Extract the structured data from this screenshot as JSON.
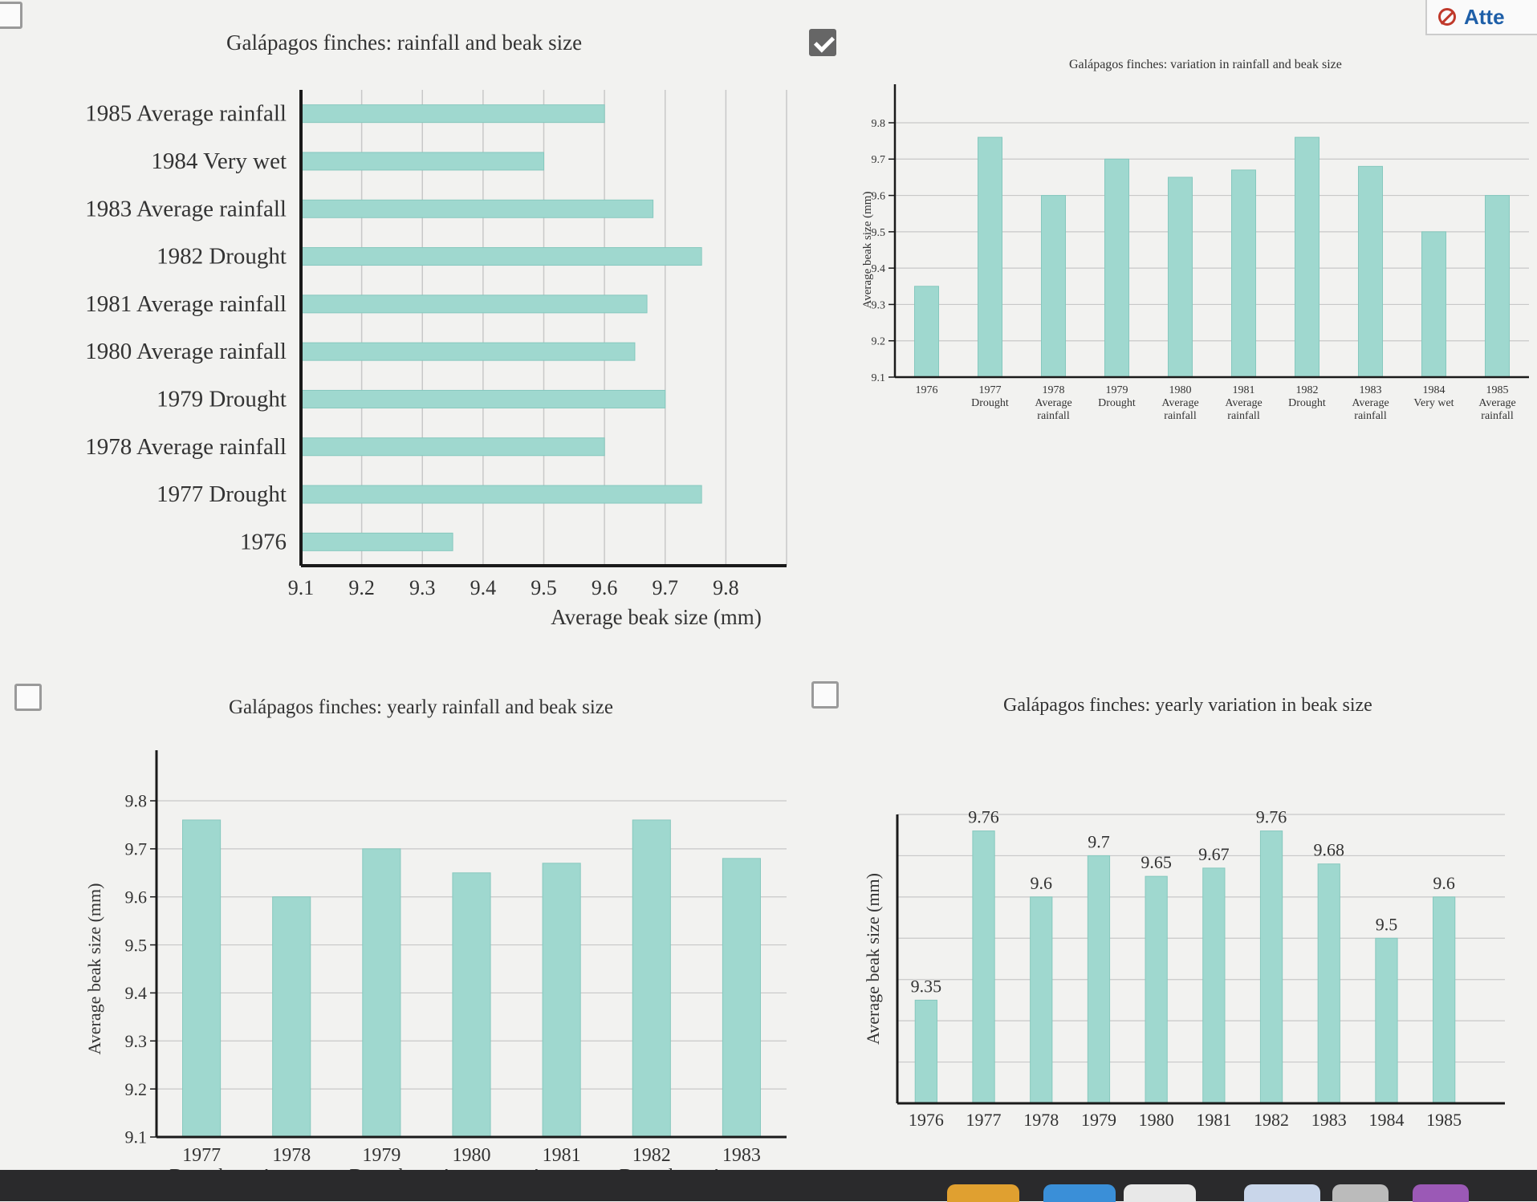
{
  "colors": {
    "bar": "#9fd8cf",
    "bar_edge": "#86c8be",
    "axis": "#1a1a1a",
    "grid": "#c8c8c8"
  },
  "attempt": {
    "label": "Atte"
  },
  "options": [
    {
      "checked": false
    },
    {
      "checked": true
    },
    {
      "checked": false
    },
    {
      "checked": false
    }
  ],
  "chart_data": [
    {
      "type": "bar",
      "orientation": "horizontal",
      "title": "Galápagos finches: rainfall and beak size",
      "xlabel": "Average beak size (mm)",
      "ylabel": "",
      "xlim": [
        9.1,
        9.9
      ],
      "ticks": [
        "9.1",
        "9.2",
        "9.3",
        "9.4",
        "9.5",
        "9.6",
        "9.7",
        "9.8"
      ],
      "grid": true,
      "categories": [
        "1985 Average rainfall",
        "1984 Very wet",
        "1983 Average rainfall",
        "1982 Drought",
        "1981 Average rainfall",
        "1980 Average rainfall",
        "1979 Drought",
        "1978 Average rainfall",
        "1977 Drought",
        "1976"
      ],
      "values": [
        9.6,
        9.5,
        9.68,
        9.76,
        9.67,
        9.65,
        9.7,
        9.6,
        9.76,
        9.35
      ]
    },
    {
      "type": "bar",
      "title": "Galápagos finches: variation in rainfall and beak size",
      "xlabel": "",
      "ylabel": "Average beak size (mm)",
      "ylim": [
        9.1,
        9.8
      ],
      "ticks": [
        "9.1",
        "9.2",
        "9.3",
        "9.4",
        "9.5",
        "9.6",
        "9.7",
        "9.8"
      ],
      "grid": true,
      "categories": [
        [
          "1976"
        ],
        [
          "1977",
          "Drought"
        ],
        [
          "1978",
          "Average",
          "rainfall"
        ],
        [
          "1979",
          "Drought"
        ],
        [
          "1980",
          "Average",
          "rainfall"
        ],
        [
          "1981",
          "Average",
          "rainfall"
        ],
        [
          "1982",
          "Drought"
        ],
        [
          "1983",
          "Average",
          "rainfall"
        ],
        [
          "1984",
          "Very wet"
        ],
        [
          "1985",
          "Average",
          "rainfall"
        ]
      ],
      "values": [
        9.35,
        9.76,
        9.6,
        9.7,
        9.65,
        9.67,
        9.76,
        9.68,
        9.5,
        9.6
      ]
    },
    {
      "type": "bar",
      "title": "Galápagos finches: yearly rainfall and beak size",
      "xlabel": "",
      "ylabel": "Average beak size (mm)",
      "ylim": [
        9.1,
        9.8
      ],
      "ticks": [
        "9.1",
        "9.2",
        "9.3",
        "9.4",
        "9.5",
        "9.6",
        "9.7",
        "9.8"
      ],
      "grid": true,
      "categories": [
        [
          "1977",
          "Drought"
        ],
        [
          "1978",
          "Average"
        ],
        [
          "1979",
          "Drought"
        ],
        [
          "1980",
          "Average"
        ],
        [
          "1981",
          "Average"
        ],
        [
          "1982",
          "Drought"
        ],
        [
          "1983",
          "Average"
        ]
      ],
      "values": [
        9.76,
        9.6,
        9.7,
        9.65,
        9.67,
        9.76,
        9.68
      ]
    },
    {
      "type": "bar",
      "title": "Galápagos finches: yearly variation in beak size",
      "xlabel": "",
      "ylabel": "Average beak size (mm)",
      "ylim": [
        9.1,
        9.8
      ],
      "grid": true,
      "categories": [
        "1976",
        "1977",
        "1978",
        "1979",
        "1980",
        "1981",
        "1982",
        "1983",
        "1984",
        "1985"
      ],
      "values": [
        9.35,
        9.76,
        9.6,
        9.7,
        9.65,
        9.67,
        9.76,
        9.68,
        9.5,
        9.6
      ],
      "data_labels": [
        "9.35",
        "9.76",
        "9.6",
        "9.7",
        "9.65",
        "9.67",
        "9.76",
        "9.68",
        "9.5",
        "9.6"
      ]
    }
  ]
}
